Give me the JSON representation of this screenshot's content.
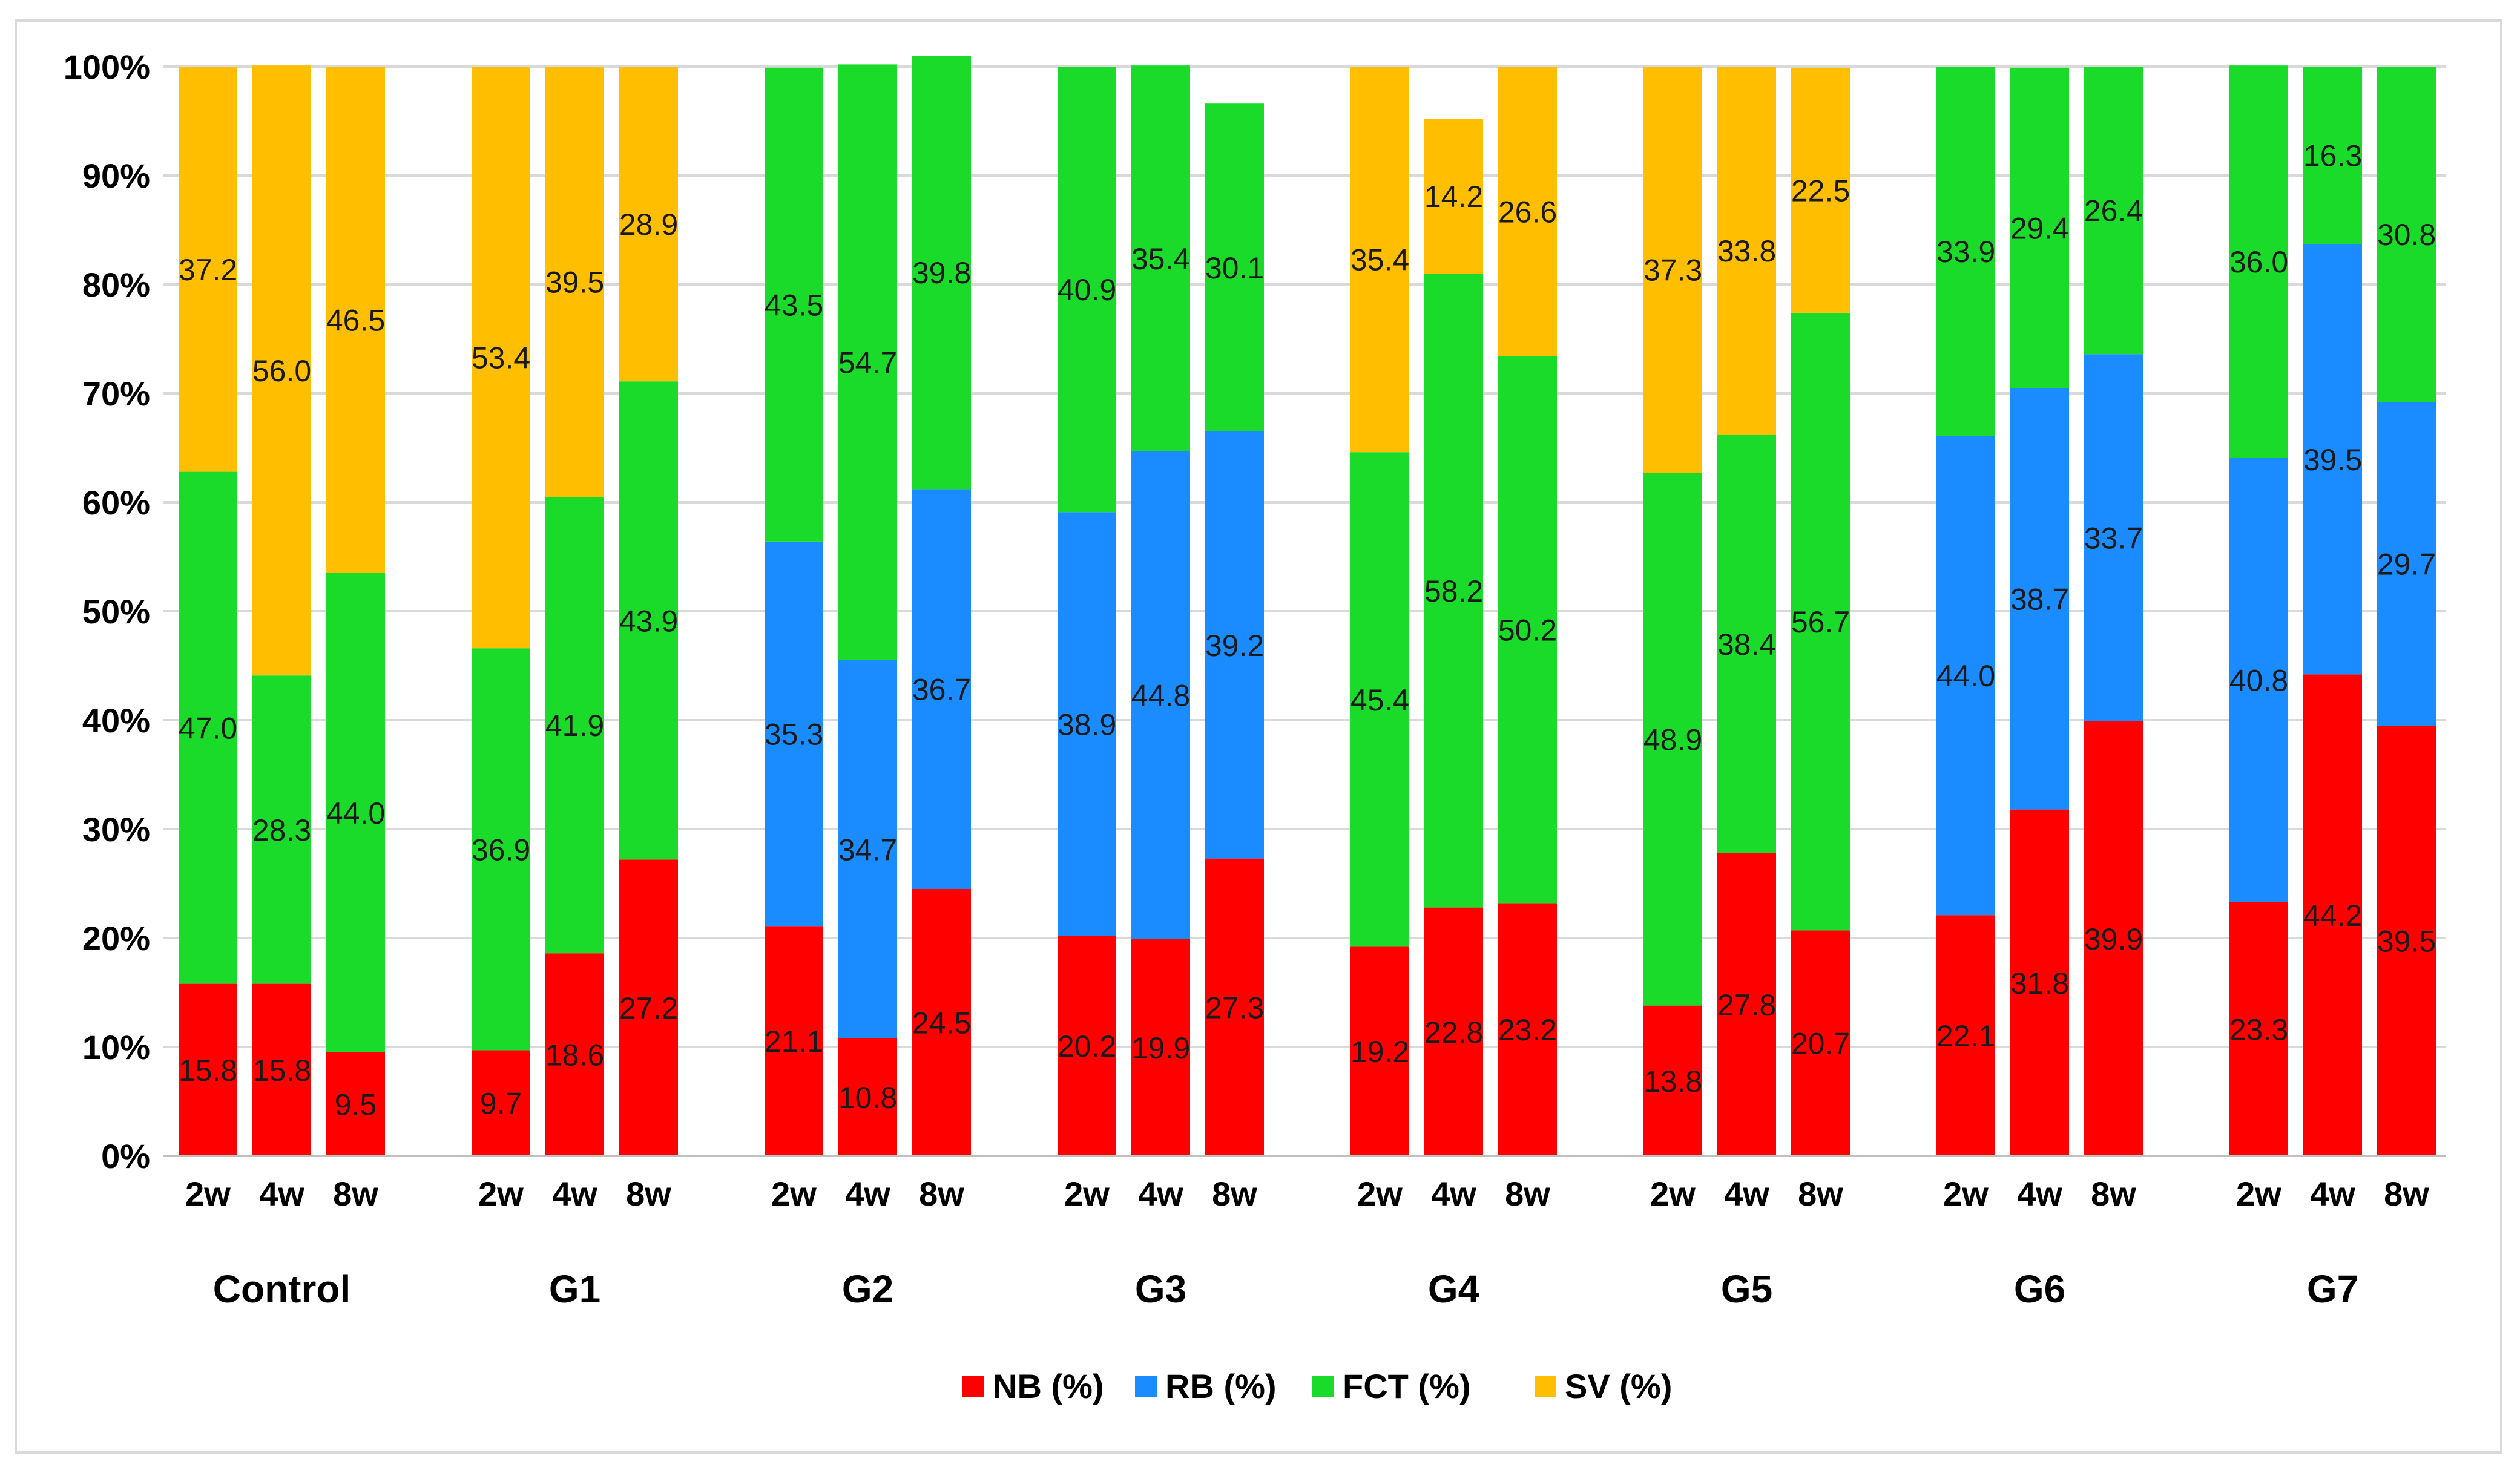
{
  "chart_data": {
    "type": "bar",
    "stacked": true,
    "percent_stacked": true,
    "title": "",
    "xlabel": "",
    "ylabel": "",
    "ylim": [
      0,
      100
    ],
    "yticks": [
      "0%",
      "10%",
      "20%",
      "30%",
      "40%",
      "50%",
      "60%",
      "70%",
      "80%",
      "90%",
      "100%"
    ],
    "grid": true,
    "legend_position": "bottom-center",
    "groups": [
      {
        "name": "Control",
        "bars": [
          {
            "time": "2w",
            "values": [
              15.8,
              0,
              47.0,
              37.2
            ],
            "labels": [
              "15.8",
              "",
              "47.0",
              "37.2"
            ]
          },
          {
            "time": "4w",
            "values": [
              15.8,
              0,
              28.3,
              56.0
            ],
            "labels": [
              "15.8",
              "",
              "28.3",
              "56.0"
            ]
          },
          {
            "time": "8w",
            "values": [
              9.5,
              0,
              44.0,
              46.5
            ],
            "labels": [
              "9.5",
              "",
              "44.0",
              "46.5"
            ]
          }
        ]
      },
      {
        "name": "G1",
        "bars": [
          {
            "time": "2w",
            "values": [
              9.7,
              0,
              36.9,
              53.4
            ],
            "labels": [
              "9.7",
              "",
              "36.9",
              "53.4"
            ]
          },
          {
            "time": "4w",
            "values": [
              18.6,
              0,
              41.9,
              39.5
            ],
            "labels": [
              "18.6",
              "",
              "41.9",
              "39.5"
            ]
          },
          {
            "time": "8w",
            "values": [
              27.2,
              0,
              43.9,
              28.9
            ],
            "labels": [
              "27.2",
              "",
              "43.9",
              "28.9"
            ]
          }
        ]
      },
      {
        "name": "G2",
        "bars": [
          {
            "time": "2w",
            "values": [
              21.1,
              35.3,
              43.5,
              0
            ],
            "labels": [
              "21.1",
              "35.3",
              "43.5",
              ""
            ]
          },
          {
            "time": "4w",
            "values": [
              10.8,
              34.7,
              54.7,
              0
            ],
            "labels": [
              "10.8",
              "34.7",
              "54.7",
              ""
            ]
          },
          {
            "time": "8w",
            "values": [
              24.5,
              36.7,
              39.8,
              0
            ],
            "labels": [
              "24.5",
              "36.7",
              "39.8",
              ""
            ]
          }
        ]
      },
      {
        "name": "G3",
        "bars": [
          {
            "time": "2w",
            "values": [
              20.2,
              38.9,
              40.9,
              0
            ],
            "labels": [
              "20.2",
              "38.9",
              "40.9",
              ""
            ]
          },
          {
            "time": "4w",
            "values": [
              19.9,
              44.8,
              35.4,
              0
            ],
            "labels": [
              "19.9",
              "44.8",
              "35.4",
              ""
            ]
          },
          {
            "time": "8w",
            "values": [
              27.3,
              39.2,
              30.1,
              0
            ],
            "labels": [
              "27.3",
              "39.2",
              "30.1",
              ""
            ]
          }
        ]
      },
      {
        "name": "G4",
        "bars": [
          {
            "time": "2w",
            "values": [
              19.2,
              0,
              45.4,
              35.4
            ],
            "labels": [
              "19.2",
              "",
              "45.4",
              "35.4"
            ]
          },
          {
            "time": "4w",
            "values": [
              22.8,
              0,
              58.2,
              14.2
            ],
            "labels": [
              "22.8",
              "",
              "58.2",
              "14.2"
            ]
          },
          {
            "time": "8w",
            "values": [
              23.2,
              0,
              50.2,
              26.6
            ],
            "labels": [
              "23.2",
              "",
              "50.2",
              "26.6"
            ]
          }
        ]
      },
      {
        "name": "G5",
        "bars": [
          {
            "time": "2w",
            "values": [
              13.8,
              0,
              48.9,
              37.3
            ],
            "labels": [
              "13.8",
              "",
              "48.9",
              "37.3"
            ]
          },
          {
            "time": "4w",
            "values": [
              27.8,
              0,
              38.4,
              33.8
            ],
            "labels": [
              "27.8",
              "",
              "38.4",
              "33.8"
            ]
          },
          {
            "time": "8w",
            "values": [
              20.7,
              0,
              56.7,
              22.5
            ],
            "labels": [
              "20.7",
              "",
              "56.7",
              "22.5"
            ]
          }
        ]
      },
      {
        "name": "G6",
        "bars": [
          {
            "time": "2w",
            "values": [
              22.1,
              44.0,
              33.9,
              0
            ],
            "labels": [
              "22.1",
              "44.0",
              "33.9",
              ""
            ]
          },
          {
            "time": "4w",
            "values": [
              31.8,
              38.7,
              29.4,
              0
            ],
            "labels": [
              "31.8",
              "38.7",
              "29.4",
              ""
            ]
          },
          {
            "time": "8w",
            "values": [
              39.9,
              33.7,
              26.4,
              0
            ],
            "labels": [
              "39.9",
              "33.7",
              "26.4",
              ""
            ]
          }
        ]
      },
      {
        "name": "G7",
        "bars": [
          {
            "time": "2w",
            "values": [
              23.3,
              40.8,
              36.0,
              0
            ],
            "labels": [
              "23.3",
              "40.8",
              "36.0",
              ""
            ]
          },
          {
            "time": "4w",
            "values": [
              44.2,
              39.5,
              16.3,
              0
            ],
            "labels": [
              "44.2",
              "39.5",
              "16.3",
              ""
            ]
          },
          {
            "time": "8w",
            "values": [
              39.5,
              29.7,
              30.8,
              0
            ],
            "labels": [
              "39.5",
              "29.7",
              "30.8",
              ""
            ]
          }
        ]
      }
    ],
    "series": [
      {
        "name": "NB (%)",
        "color": "#ff0000"
      },
      {
        "name": "RB (%)",
        "color": "#1a8cff"
      },
      {
        "name": "FCT (%)",
        "color": "#1adb2a"
      },
      {
        "name": "SV (%)",
        "color": "#ffbf00"
      }
    ]
  }
}
